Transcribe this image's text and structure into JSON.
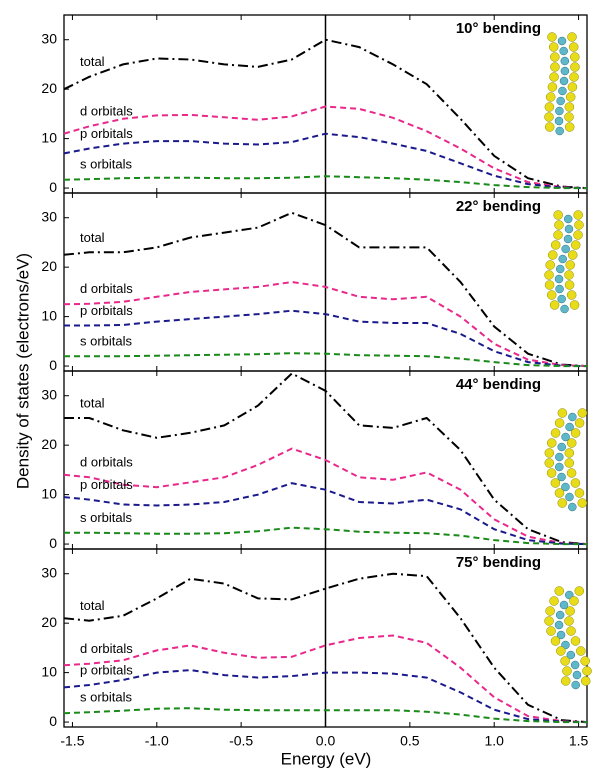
{
  "ylabel": "Density of states (electrons/eV)",
  "xlabel": "Energy (eV)",
  "chart_data": [
    {
      "type": "line",
      "title": "10° bending",
      "x": [
        -1.55,
        -1.4,
        -1.2,
        -1.0,
        -0.8,
        -0.6,
        -0.4,
        -0.2,
        0,
        0.2,
        0.4,
        0.6,
        0.8,
        1.0,
        1.2,
        1.4,
        1.55
      ],
      "series": [
        {
          "name": "total",
          "color": "#000000",
          "values": [
            20,
            22.5,
            25,
            26.2,
            26,
            25,
            24.5,
            26,
            30,
            28.5,
            25,
            21,
            14,
            6.5,
            2,
            0.3,
            0
          ]
        },
        {
          "name": "d orbitals",
          "color": "#e8288a",
          "values": [
            11,
            12.5,
            14,
            14.7,
            14.8,
            14.3,
            13.8,
            14.5,
            16.5,
            16,
            14.2,
            11.5,
            8,
            4,
            1.2,
            0.2,
            0
          ]
        },
        {
          "name": "p orbitals",
          "color": "#1a1a8c",
          "values": [
            7,
            8,
            9,
            9.5,
            9.5,
            9,
            8.8,
            9.3,
            11,
            10.3,
            9,
            7.5,
            5,
            2.5,
            0.8,
            0.1,
            0
          ]
        },
        {
          "name": "s orbitals",
          "color": "#1a8a1a",
          "values": [
            1.7,
            1.8,
            2,
            2.1,
            2.1,
            2,
            2,
            2.1,
            2.4,
            2.2,
            2,
            1.7,
            1.2,
            0.6,
            0.2,
            0,
            0
          ]
        }
      ],
      "xlim": [
        -1.55,
        1.55
      ],
      "ylim": [
        -1,
        35
      ],
      "yticks": [
        0,
        10,
        20,
        30
      ]
    },
    {
      "type": "line",
      "title": "22° bending",
      "x": [
        -1.55,
        -1.4,
        -1.2,
        -1.0,
        -0.8,
        -0.6,
        -0.4,
        -0.2,
        0,
        0.2,
        0.4,
        0.6,
        0.8,
        1.0,
        1.2,
        1.4,
        1.55
      ],
      "series": [
        {
          "name": "total",
          "color": "#000000",
          "values": [
            22.5,
            23,
            23,
            24,
            26,
            27,
            28,
            31,
            28.5,
            24,
            24,
            24,
            17,
            8,
            2.5,
            0.3,
            0
          ]
        },
        {
          "name": "d orbitals",
          "color": "#e8288a",
          "values": [
            12.5,
            12.6,
            13,
            14,
            15,
            15.5,
            16,
            17,
            16,
            14,
            13.5,
            14,
            10,
            4.5,
            1.3,
            0.2,
            0
          ]
        },
        {
          "name": "p orbitals",
          "color": "#1a1a8c",
          "values": [
            8.2,
            8.2,
            8.3,
            9,
            9.5,
            10,
            10.5,
            11.2,
            10.5,
            9,
            8.7,
            8.7,
            6.5,
            3,
            0.8,
            0.1,
            0
          ]
        },
        {
          "name": "s orbitals",
          "color": "#1a8a1a",
          "values": [
            2,
            2,
            2,
            2.1,
            2.2,
            2.3,
            2.4,
            2.6,
            2.5,
            2.2,
            2.1,
            2,
            1.5,
            0.8,
            0.2,
            0,
            0
          ]
        }
      ],
      "xlim": [
        -1.55,
        1.55
      ],
      "ylim": [
        -1,
        35
      ],
      "yticks": [
        0,
        10,
        20,
        30
      ]
    },
    {
      "type": "line",
      "title": "44° bending",
      "x": [
        -1.55,
        -1.4,
        -1.2,
        -1.0,
        -0.8,
        -0.6,
        -0.4,
        -0.2,
        0,
        0.2,
        0.4,
        0.6,
        0.8,
        1.0,
        1.2,
        1.4,
        1.55
      ],
      "series": [
        {
          "name": "total",
          "color": "#000000",
          "values": [
            25.5,
            25.5,
            23,
            21.5,
            22.5,
            24,
            28,
            34.5,
            31,
            24,
            23.5,
            25.5,
            19,
            9,
            3,
            0.4,
            0
          ]
        },
        {
          "name": "d orbitals",
          "color": "#e8288a",
          "values": [
            14,
            13.5,
            12,
            11.5,
            12.5,
            13.5,
            16,
            19.3,
            17,
            13.5,
            13,
            14.5,
            11,
            5,
            1.5,
            0.2,
            0
          ]
        },
        {
          "name": "p orbitals",
          "color": "#1a1a8c",
          "values": [
            9.5,
            9,
            8,
            7.8,
            8,
            8.5,
            10,
            12.3,
            11,
            8.5,
            8.2,
            9,
            7,
            3,
            0.8,
            0.1,
            0
          ]
        },
        {
          "name": "s orbitals",
          "color": "#1a8a1a",
          "values": [
            2.3,
            2.3,
            2.2,
            2.1,
            2.1,
            2.2,
            2.6,
            3.3,
            3,
            2.5,
            2.3,
            2.2,
            1.7,
            0.8,
            0.2,
            0,
            0
          ]
        }
      ],
      "xlim": [
        -1.55,
        1.55
      ],
      "ylim": [
        -1,
        35
      ],
      "yticks": [
        0,
        10,
        20,
        30
      ]
    },
    {
      "type": "line",
      "title": "75° bending",
      "x": [
        -1.55,
        -1.4,
        -1.2,
        -1.0,
        -0.8,
        -0.6,
        -0.4,
        -0.2,
        0,
        0.2,
        0.4,
        0.6,
        0.8,
        1.0,
        1.2,
        1.4,
        1.55
      ],
      "series": [
        {
          "name": "total",
          "color": "#000000",
          "values": [
            21,
            20.5,
            21.5,
            25,
            29,
            28,
            25,
            24.8,
            27,
            29,
            30,
            29.5,
            21,
            11,
            3.5,
            0.4,
            0
          ]
        },
        {
          "name": "d orbitals",
          "color": "#e8288a",
          "values": [
            11.5,
            11.8,
            12.5,
            14.5,
            15.5,
            14,
            13,
            13.2,
            15.5,
            17,
            17.5,
            16,
            11,
            5,
            1.2,
            0.2,
            0
          ]
        },
        {
          "name": "p orbitals",
          "color": "#1a1a8c",
          "values": [
            7,
            7.5,
            8.5,
            10,
            10.5,
            9.5,
            9,
            9.3,
            10,
            10,
            9.8,
            9,
            6,
            2.5,
            0.6,
            0.1,
            0
          ]
        },
        {
          "name": "s orbitals",
          "color": "#1a8a1a",
          "values": [
            1.8,
            2,
            2.3,
            2.7,
            2.8,
            2.5,
            2.4,
            2.4,
            2.4,
            2.4,
            2.4,
            2.1,
            1.5,
            0.7,
            0.2,
            0,
            0
          ]
        }
      ],
      "xlim": [
        -1.55,
        1.55
      ],
      "ylim": [
        -1,
        35
      ],
      "yticks": [
        0,
        10,
        20,
        30
      ],
      "xticks": [
        {
          "value": -1.5,
          "label": "-1.5"
        },
        {
          "value": -1.0,
          "label": "-1.0"
        },
        {
          "value": -0.5,
          "label": "-0.5"
        },
        {
          "value": 0,
          "label": "0.0"
        },
        0.5,
        {
          "value": 1.0,
          "label": "1.0"
        },
        1.5
      ]
    }
  ]
}
